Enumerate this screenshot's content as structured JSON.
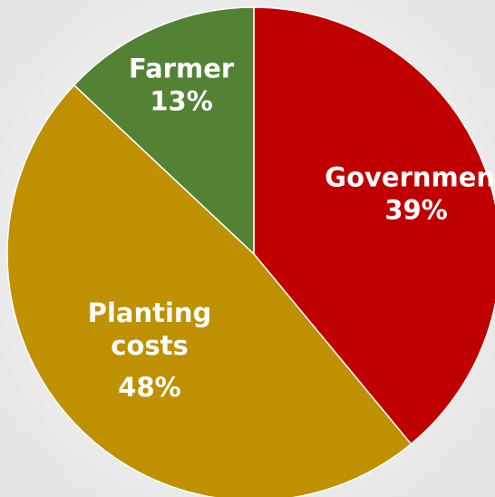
{
  "chart_data": {
    "type": "pie",
    "slices": [
      {
        "label": "Government",
        "label_lines": [
          "Government"
        ],
        "value": 39,
        "value_label": "39%",
        "color": "#c00000"
      },
      {
        "label": "Planting costs",
        "label_lines": [
          "Planting",
          "costs"
        ],
        "value": 48,
        "value_label": "48%",
        "color": "#bf9000"
      },
      {
        "label": "Farmer",
        "label_lines": [
          "Farmer"
        ],
        "value": 13,
        "value_label": "13%",
        "color": "#548235"
      }
    ],
    "start": "12 o'clock",
    "direction": "clockwise",
    "legend": "none"
  },
  "colors": {
    "background": "#f0f0f0",
    "label_text": "#ffffff",
    "slice_border": "#ffffff"
  }
}
